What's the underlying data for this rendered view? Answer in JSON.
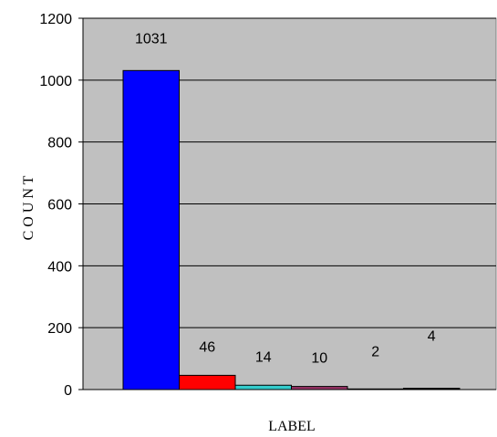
{
  "chart_data": {
    "type": "bar",
    "xlabel": "LABEL",
    "ylabel": "C O U N T",
    "ylim": [
      0,
      1200
    ],
    "yticks": [
      0,
      200,
      400,
      600,
      800,
      1000,
      1200
    ],
    "grid": true,
    "plot_background": "#c0c0c0",
    "values": [
      1031,
      46,
      14,
      10,
      2,
      4
    ],
    "data_labels": [
      "1031",
      "46",
      "14",
      "10",
      "2",
      "4"
    ],
    "bar_colors": [
      "#0000ff",
      "#ff0000",
      "#33cccc",
      "#993366",
      "#ffff99",
      "#000000"
    ]
  }
}
